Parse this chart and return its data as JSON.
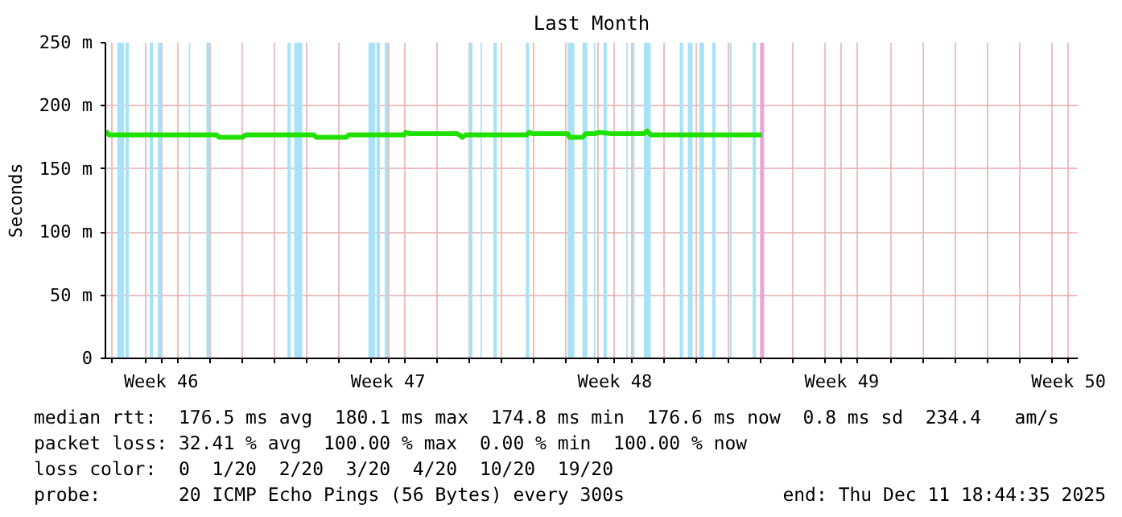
{
  "chart_data": {
    "type": "line",
    "title": "Last Month",
    "ylabel": "Seconds",
    "xlim": [
      "2025-11-11T18:44",
      "2025-12-11T18:44"
    ],
    "xticks": [
      {
        "value": "2025-11-12",
        "label": null
      },
      {
        "value": "2025-11-13",
        "label": null
      },
      {
        "value": "2025-11-14",
        "label": null
      },
      {
        "value": "2025-11-15",
        "label": null
      },
      {
        "value": "2025-11-16",
        "label": null
      },
      {
        "value": "2025-11-17",
        "label": null
      },
      {
        "value": "2025-11-18",
        "label": null
      },
      {
        "value": "2025-11-19",
        "label": null
      },
      {
        "value": "2025-11-20",
        "label": null
      },
      {
        "value": "2025-11-21",
        "label": null
      },
      {
        "value": "2025-11-22",
        "label": null
      },
      {
        "value": "2025-11-23",
        "label": null
      },
      {
        "value": "2025-11-24",
        "label": null
      },
      {
        "value": "2025-11-25",
        "label": null
      },
      {
        "value": "2025-11-26",
        "label": null
      },
      {
        "value": "2025-11-27",
        "label": null
      },
      {
        "value": "2025-11-28",
        "label": null
      },
      {
        "value": "2025-11-29",
        "label": null
      },
      {
        "value": "2025-11-30",
        "label": null
      },
      {
        "value": "2025-12-01",
        "label": null
      },
      {
        "value": "2025-12-02",
        "label": null
      },
      {
        "value": "2025-12-03",
        "label": null
      },
      {
        "value": "2025-12-04",
        "label": null
      },
      {
        "value": "2025-12-05",
        "label": null
      },
      {
        "value": "2025-12-06",
        "label": null
      },
      {
        "value": "2025-12-07",
        "label": null
      },
      {
        "value": "2025-12-08",
        "label": null
      },
      {
        "value": "2025-12-09",
        "label": null
      },
      {
        "value": "2025-12-10",
        "label": null
      },
      {
        "value": "2025-12-11",
        "label": null
      },
      {
        "value": "2025-11-13T12:00",
        "label": "Week 46"
      },
      {
        "value": "2025-11-20T12:00",
        "label": "Week 47"
      },
      {
        "value": "2025-11-27T12:00",
        "label": "Week 48"
      },
      {
        "value": "2025-12-04T12:00",
        "label": "Week 49"
      },
      {
        "value": "2025-12-11T12:00",
        "label": "Week 50"
      }
    ],
    "ylim": [
      0,
      250
    ],
    "yticks": [
      0,
      {
        "value": 50,
        "label": "50 m"
      },
      {
        "value": 100,
        "label": "100 m"
      },
      {
        "value": 150,
        "label": "150 m"
      },
      {
        "value": 200,
        "label": "200 m"
      },
      {
        "value": 250,
        "label": "250 m"
      }
    ],
    "grid": true,
    "series": [
      {
        "color": "#20e000",
        "x": [
          "2025-11-11T19:00",
          "2025-11-11T21:30",
          "2025-11-15T05:00",
          "2025-11-15T07:00",
          "2025-11-16T00:00",
          "2025-11-16T02:30",
          "2025-11-18T05:00",
          "2025-11-18T07:00",
          "2025-11-19T05:00",
          "2025-11-19T07:00",
          "2025-11-21T00:00",
          "2025-11-21T01:00",
          "2025-11-21T03:30",
          "2025-11-22T14:30",
          "2025-11-22T17:00",
          "2025-11-22T19:00",
          "2025-11-22T21:30",
          "2025-11-24T19:00",
          "2025-11-24T20:30",
          "2025-11-24T23:00",
          "2025-11-26T01:00",
          "2025-11-26T02:30",
          "2025-11-26T12:00",
          "2025-11-26T14:30",
          "2025-11-26T21:30",
          "2025-11-27T00:00",
          "2025-11-27T09:30",
          "2025-11-28T09:30",
          "2025-11-28T12:00",
          "2025-11-28T14:30",
          "2025-12-02T01:00"
        ],
        "values": [
          180,
          177,
          177,
          175,
          175,
          177,
          177,
          175,
          175,
          177,
          177,
          179,
          178,
          178,
          177,
          175,
          177,
          177,
          179,
          178,
          178,
          175,
          175,
          178,
          178,
          179,
          178,
          178,
          180,
          177,
          177
        ]
      }
    ],
    "bands": [
      {
        "axis": "x",
        "from": "2025-11-12T03:30",
        "to": "2025-11-12T08:30",
        "color": "#a8e2f8"
      },
      {
        "axis": "x",
        "from": "2025-11-12T09:30",
        "to": "2025-11-12T12:00",
        "color": "#a8e2f8"
      },
      {
        "axis": "x",
        "from": "2025-11-13T03:30",
        "to": "2025-11-13T06:00",
        "color": "#a8e2f8"
      },
      {
        "axis": "x",
        "from": "2025-11-13T09:30",
        "to": "2025-11-13T12:00",
        "color": "#a8e2f8"
      },
      {
        "axis": "x",
        "from": "2025-11-14T08:30",
        "to": "2025-11-14T09:30",
        "color": "#a8e2f8"
      },
      {
        "axis": "x",
        "from": "2025-11-14T21:30",
        "to": "2025-11-15T00:00",
        "color": "#a8e2f8"
      },
      {
        "axis": "x",
        "from": "2025-11-17T09:30",
        "to": "2025-11-17T12:00",
        "color": "#a8e2f8"
      },
      {
        "axis": "x",
        "from": "2025-11-17T14:30",
        "to": "2025-11-17T20:30",
        "color": "#a8e2f8"
      },
      {
        "axis": "x",
        "from": "2025-11-19T21:30",
        "to": "2025-11-20T02:30",
        "color": "#a8e2f8"
      },
      {
        "axis": "x",
        "from": "2025-11-20T03:30",
        "to": "2025-11-20T06:00",
        "color": "#a8e2f8"
      },
      {
        "axis": "x",
        "from": "2025-11-20T09:30",
        "to": "2025-11-20T12:00",
        "color": "#a8e2f8"
      },
      {
        "axis": "x",
        "from": "2025-11-23T00:00",
        "to": "2025-11-23T02:30",
        "color": "#a8e2f8"
      },
      {
        "axis": "x",
        "from": "2025-11-23T08:30",
        "to": "2025-11-23T09:30",
        "color": "#a8e2f8"
      },
      {
        "axis": "x",
        "from": "2025-11-23T18:00",
        "to": "2025-11-23T20:30",
        "color": "#a8e2f8"
      },
      {
        "axis": "x",
        "from": "2025-11-24T18:00",
        "to": "2025-11-24T20:30",
        "color": "#a8e2f8"
      },
      {
        "axis": "x",
        "from": "2025-11-26T01:00",
        "to": "2025-11-26T06:00",
        "color": "#a8e2f8"
      },
      {
        "axis": "x",
        "from": "2025-11-26T12:00",
        "to": "2025-11-26T15:30",
        "color": "#a8e2f8"
      },
      {
        "axis": "x",
        "from": "2025-11-26T20:30",
        "to": "2025-11-26T21:30",
        "color": "#a8e2f8"
      },
      {
        "axis": "x",
        "from": "2025-11-27T03:30",
        "to": "2025-11-27T06:00",
        "color": "#a8e2f8"
      },
      {
        "axis": "x",
        "from": "2025-11-27T20:30",
        "to": "2025-11-27T21:30",
        "color": "#a8e2f8"
      },
      {
        "axis": "x",
        "from": "2025-11-28T01:00",
        "to": "2025-11-28T02:30",
        "color": "#a8e2f8"
      },
      {
        "axis": "x",
        "from": "2025-11-28T09:30",
        "to": "2025-11-28T14:30",
        "color": "#a8e2f8"
      },
      {
        "axis": "x",
        "from": "2025-11-29T12:00",
        "to": "2025-11-29T14:30",
        "color": "#a8e2f8"
      },
      {
        "axis": "x",
        "from": "2025-11-29T18:00",
        "to": "2025-11-29T21:30",
        "color": "#a8e2f8"
      },
      {
        "axis": "x",
        "from": "2025-11-30T02:30",
        "to": "2025-11-30T06:00",
        "color": "#a8e2f8"
      },
      {
        "axis": "x",
        "from": "2025-11-30T12:00",
        "to": "2025-11-30T14:30",
        "color": "#a8e2f8"
      },
      {
        "axis": "x",
        "from": "2025-12-01T01:00",
        "to": "2025-12-01T02:30",
        "color": "#a8e2f8"
      },
      {
        "axis": "x",
        "from": "2025-12-01T18:00",
        "to": "2025-12-01T20:30",
        "color": "#a8e2f8"
      },
      {
        "axis": "x",
        "from": "2025-12-02T00:00",
        "to": "2025-12-02T02:30",
        "color": "#e8a0f2"
      }
    ],
    "annotations": [
      "median rtt:  176.5 ms avg  180.1 ms max  174.8 ms min  176.6 ms now  0.8 ms sd  234.4   am/s",
      "packet loss: 32.41 % avg  100.00 % max  0.00 % min  100.00 % now",
      "loss color:  0  1/20  2/20  3/20  4/20  10/20  19/20",
      "probe:       20 ICMP Echo Pings (56 Bytes) every 300s",
      "end: Thu Dec 11 18:44:35 2025"
    ]
  }
}
